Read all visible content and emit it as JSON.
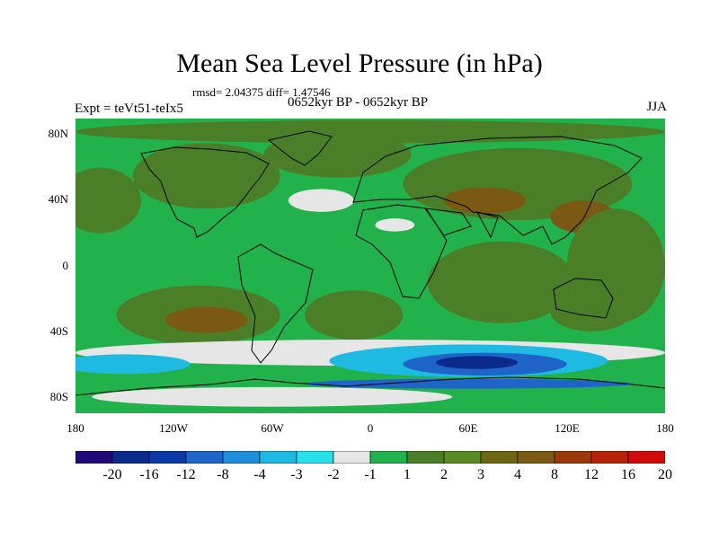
{
  "title": "Mean Sea Level Pressure (in hPa)",
  "stats_line": "rmsd= 2.04375 diff= 1.47546",
  "period": "0652kyr BP - 0652kyr BP",
  "experiment": "Expt = teVt51-teIx5",
  "season": "JJA",
  "map": {
    "projection": "cylindrical equidistant",
    "lon_range": [
      -180,
      180
    ],
    "lat_range": [
      -90,
      90
    ],
    "lat_ticks": [
      {
        "lat": 80,
        "label": "80N"
      },
      {
        "lat": 40,
        "label": "40N"
      },
      {
        "lat": 0,
        "label": "0"
      },
      {
        "lat": -40,
        "label": "40S"
      },
      {
        "lat": -80,
        "label": "80S"
      }
    ],
    "lon_ticks": [
      {
        "lon": -180,
        "label": "180"
      },
      {
        "lon": -120,
        "label": "120W"
      },
      {
        "lon": -60,
        "label": "60W"
      },
      {
        "lon": 0,
        "label": "0"
      },
      {
        "lon": 60,
        "label": "60E"
      },
      {
        "lon": 120,
        "label": "120E"
      },
      {
        "lon": 180,
        "label": "180"
      }
    ],
    "background_color": "#22b24c",
    "field_regions": [
      {
        "name": "north-pacific-high",
        "lon": -165,
        "lat": 40,
        "rlon": 25,
        "rlat": 20,
        "color": "#4a7f28"
      },
      {
        "name": "north-america",
        "lon": -100,
        "lat": 55,
        "rlon": 45,
        "rlat": 20,
        "color": "#4a7f28"
      },
      {
        "name": "north-atlantic",
        "lon": -20,
        "lat": 68,
        "rlon": 45,
        "rlat": 14,
        "color": "#4a7f28"
      },
      {
        "name": "arctic",
        "lon": 0,
        "lat": 82,
        "rlon": 180,
        "rlat": 7,
        "color": "#4a7f28"
      },
      {
        "name": "asia",
        "lon": 90,
        "lat": 50,
        "rlon": 70,
        "rlat": 22,
        "color": "#4a7f28"
      },
      {
        "name": "asia-core",
        "lon": 70,
        "lat": 40,
        "rlon": 25,
        "rlat": 8,
        "color": "#7a5a12"
      },
      {
        "name": "east-asia-high",
        "lon": 130,
        "lat": 30,
        "rlon": 20,
        "rlat": 10,
        "color": "#7a5a12"
      },
      {
        "name": "indian-ocean",
        "lon": 80,
        "lat": -10,
        "rlon": 45,
        "rlat": 25,
        "color": "#4a7f28"
      },
      {
        "name": "west-pacific",
        "lon": 150,
        "lat": 0,
        "rlon": 30,
        "rlat": 35,
        "color": "#4a7f28"
      },
      {
        "name": "south-pacific",
        "lon": -105,
        "lat": -30,
        "rlon": 50,
        "rlat": 18,
        "color": "#4a7f28"
      },
      {
        "name": "south-pacific-high",
        "lon": -100,
        "lat": -33,
        "rlon": 25,
        "rlat": 8,
        "color": "#7a5a12"
      },
      {
        "name": "south-atlantic",
        "lon": -10,
        "lat": -30,
        "rlon": 30,
        "rlat": 15,
        "color": "#4a7f28"
      },
      {
        "name": "australia",
        "lon": 135,
        "lat": -28,
        "rlon": 25,
        "rlat": 12,
        "color": "#4a7f28"
      },
      {
        "name": "southern-low-band",
        "lon": 0,
        "lat": -53,
        "rlon": 180,
        "rlat": 8,
        "color": "#e6e6e6"
      },
      {
        "name": "southern-ocean-low",
        "lon": 60,
        "lat": -58,
        "rlon": 85,
        "rlat": 10,
        "color": "#1ebae2"
      },
      {
        "name": "southern-ocean-low-west",
        "lon": -150,
        "lat": -60,
        "rlon": 40,
        "rlat": 6,
        "color": "#1ebae2"
      },
      {
        "name": "southern-ocean-deep",
        "lon": 70,
        "lat": -60,
        "rlon": 50,
        "rlat": 7,
        "color": "#1f64c8"
      },
      {
        "name": "southern-ocean-core",
        "lon": 65,
        "lat": -59,
        "rlon": 25,
        "rlat": 4,
        "color": "#0a2a8c"
      },
      {
        "name": "antarctic-coast",
        "lon": 60,
        "lat": -72,
        "rlon": 100,
        "rlat": 3,
        "color": "#1f64c8"
      },
      {
        "name": "antarctic-interior",
        "lon": -60,
        "lat": -80,
        "rlon": 110,
        "rlat": 6,
        "color": "#e6e6e6"
      },
      {
        "name": "north-atlantic-high",
        "lon": -30,
        "lat": 40,
        "rlon": 20,
        "rlat": 7,
        "color": "#e6e6e6"
      },
      {
        "name": "sahara-low",
        "lon": 15,
        "lat": 25,
        "rlon": 12,
        "rlat": 4,
        "color": "#e6e6e6"
      }
    ],
    "coastline_color": "#000000"
  },
  "colorbar": {
    "colors": [
      "#210a78",
      "#0a2a8c",
      "#0a3aa8",
      "#1f64c8",
      "#1e8fd8",
      "#1ebae2",
      "#26e0ea",
      "#e6e6e6",
      "#22b24c",
      "#4a7f28",
      "#5a8a24",
      "#6e6612",
      "#7a5a12",
      "#9a3a0a",
      "#b82208",
      "#d20a0a"
    ],
    "labels": [
      "-20",
      "-16",
      "-12",
      "-8",
      "-4",
      "-3",
      "-2",
      "-1",
      "1",
      "2",
      "3",
      "4",
      "8",
      "12",
      "16",
      "20"
    ]
  }
}
